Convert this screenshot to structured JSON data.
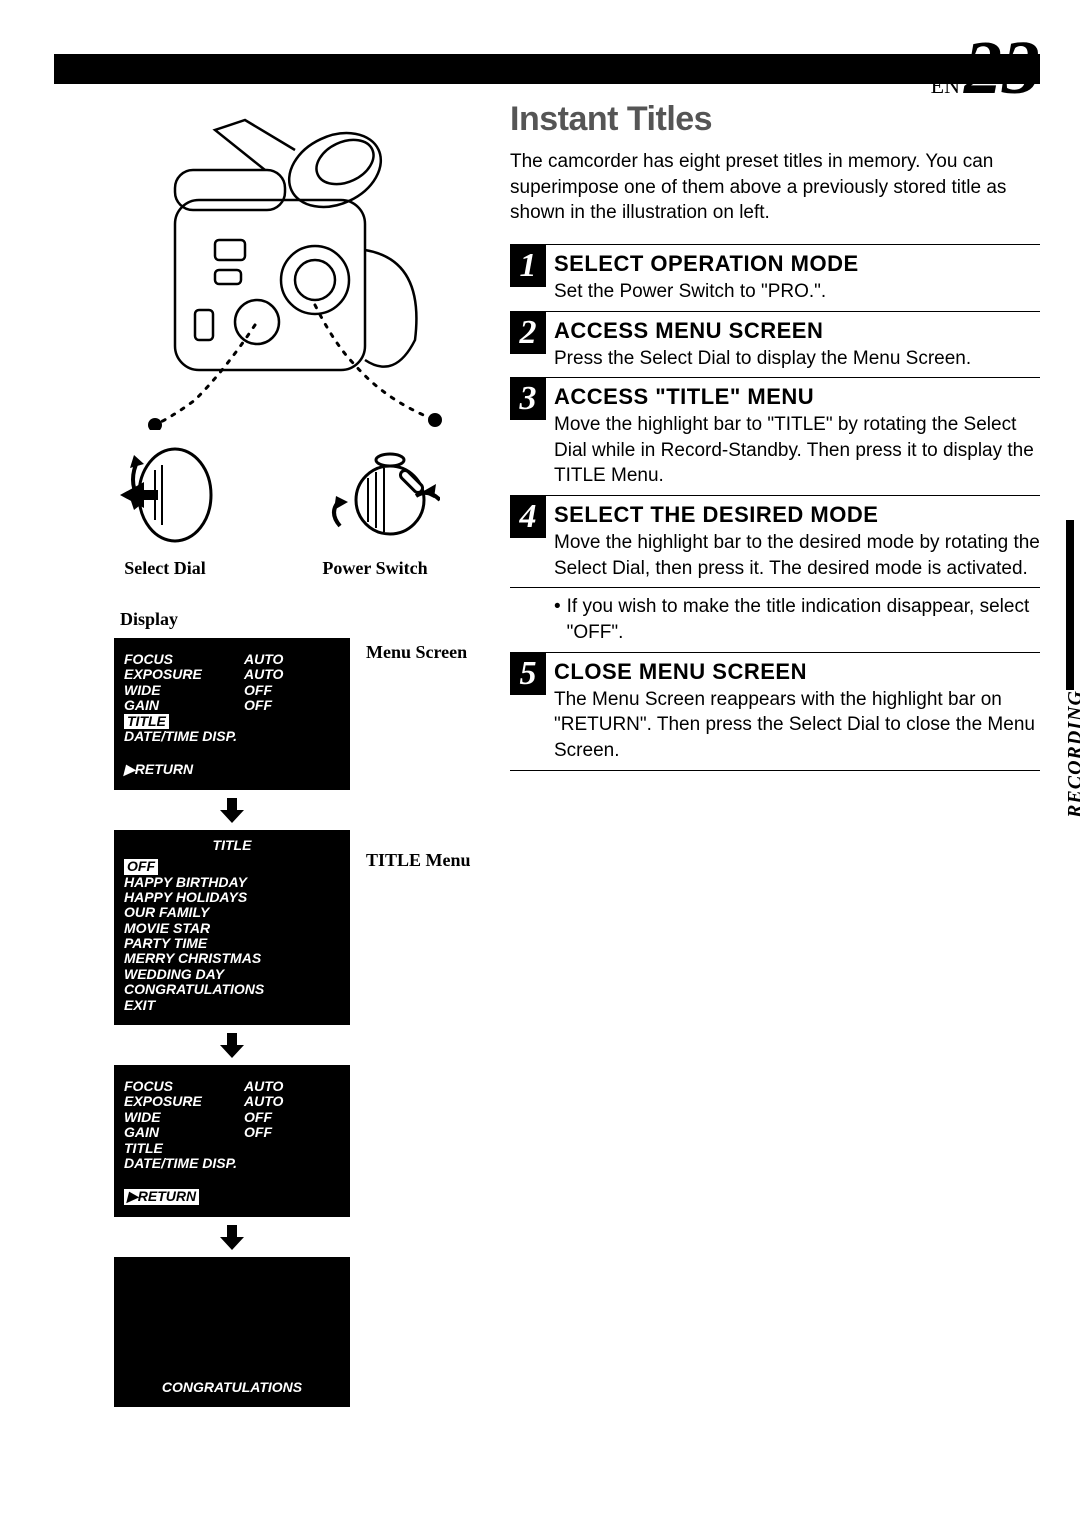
{
  "page": {
    "lang": "EN",
    "number": "23"
  },
  "side_tab": "RECORDING",
  "left": {
    "select_dial_label": "Select Dial",
    "power_switch_label": "Power Switch",
    "display_label": "Display",
    "menu_screen_label": "Menu Screen",
    "title_menu_label": "TITLE Menu",
    "screen1": {
      "rows": [
        {
          "label": "FOCUS",
          "value": "AUTO"
        },
        {
          "label": "EXPOSURE",
          "value": "AUTO"
        },
        {
          "label": "WIDE",
          "value": "OFF"
        },
        {
          "label": "GAIN",
          "value": "OFF"
        }
      ],
      "highlighted": "TITLE",
      "extra": "DATE/TIME DISP.",
      "return": "▶RETURN"
    },
    "screen2": {
      "header": "TITLE",
      "highlighted": "OFF",
      "items": [
        "HAPPY BIRTHDAY",
        "HAPPY HOLIDAYS",
        "OUR FAMILY",
        "MOVIE STAR",
        "PARTY TIME",
        "MERRY CHRISTMAS",
        "WEDDING DAY",
        "CONGRATULATIONS",
        "EXIT"
      ]
    },
    "screen3": {
      "rows": [
        {
          "label": "FOCUS",
          "value": "AUTO"
        },
        {
          "label": "EXPOSURE",
          "value": "AUTO"
        },
        {
          "label": "WIDE",
          "value": "OFF"
        },
        {
          "label": "GAIN",
          "value": "OFF"
        },
        {
          "label": "TITLE",
          "value": ""
        }
      ],
      "extra": "DATE/TIME DISP.",
      "return_inv": "▶RETURN"
    },
    "screen4": {
      "text": "CONGRATULATIONS"
    }
  },
  "right": {
    "title": "Instant Titles",
    "intro": "The camcorder has eight preset titles in memory. You can superimpose one of them above a previously stored title as shown in the illustration on left.",
    "steps": [
      {
        "n": "1",
        "title": "SELECT OPERATION MODE",
        "body": "Set the Power Switch to \"PRO.\"."
      },
      {
        "n": "2",
        "title": "ACCESS MENU SCREEN",
        "body": "Press the Select Dial to display the Menu Screen."
      },
      {
        "n": "3",
        "title": "ACCESS \"TITLE\" MENU",
        "body": "Move the highlight bar to \"TITLE\" by rotating the Select Dial while in Record-Standby. Then press it to display the TITLE Menu."
      },
      {
        "n": "4",
        "title": "SELECT THE DESIRED MODE",
        "body": "Move the highlight bar to the desired mode by rotating the Select Dial, then press it. The desired mode is activated."
      },
      {
        "n": "5",
        "title": "CLOSE MENU SCREEN",
        "body": "The Menu Screen reappears with the highlight bar on \"RETURN\". Then press the Select Dial to close the Menu Screen."
      }
    ],
    "note": "If you wish to make the title indication disappear, select \"OFF\"."
  }
}
